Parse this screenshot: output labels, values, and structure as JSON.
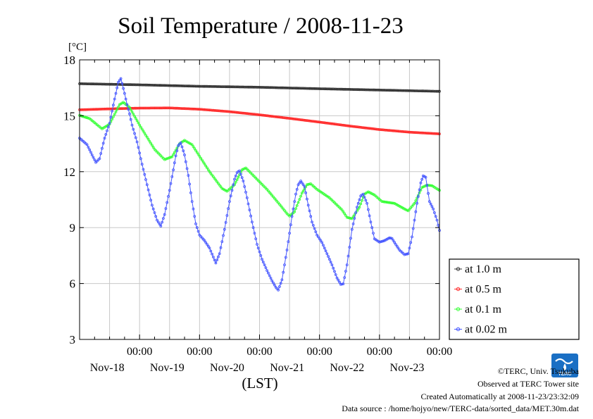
{
  "chart_data": {
    "type": "line",
    "title": "Soil Temperature / 2008-11-23",
    "xlabel": "(LST)",
    "ylabel": "[°C]",
    "ylim": [
      3,
      18
    ],
    "yticks": [
      "3",
      "6",
      "9",
      "12",
      "15",
      "18"
    ],
    "xlim_hours_from_nov17_08": [
      0,
      144
    ],
    "xtick_time_label": "00:00",
    "xtick_day_labels": [
      "Nov-18",
      "Nov-19",
      "Nov-20",
      "Nov-21",
      "Nov-22",
      "Nov-23"
    ],
    "grid": true,
    "legend_position": "bottom-right, outside plot",
    "series": [
      {
        "name": "at 1.0 m",
        "color": "#333333",
        "points": [
          [
            0,
            16.72
          ],
          [
            24,
            16.66
          ],
          [
            48,
            16.58
          ],
          [
            72,
            16.53
          ],
          [
            96,
            16.45
          ],
          [
            120,
            16.38
          ],
          [
            144,
            16.31
          ]
        ]
      },
      {
        "name": "at 0.5 m",
        "color": "#ff2a2a",
        "points": [
          [
            0,
            15.32
          ],
          [
            12,
            15.37
          ],
          [
            24,
            15.41
          ],
          [
            36,
            15.42
          ],
          [
            48,
            15.35
          ],
          [
            60,
            15.22
          ],
          [
            72,
            15.05
          ],
          [
            84,
            14.86
          ],
          [
            96,
            14.66
          ],
          [
            108,
            14.45
          ],
          [
            120,
            14.26
          ],
          [
            132,
            14.12
          ],
          [
            144,
            14.03
          ]
        ]
      },
      {
        "name": "at 0.1 m",
        "color": "#33ff33",
        "points": [
          [
            0,
            15.02
          ],
          [
            4,
            14.85
          ],
          [
            9,
            14.3
          ],
          [
            12,
            14.55
          ],
          [
            16,
            15.6
          ],
          [
            17.5,
            15.72
          ],
          [
            20,
            15.45
          ],
          [
            24,
            14.5
          ],
          [
            30,
            13.2
          ],
          [
            34,
            12.65
          ],
          [
            37,
            12.8
          ],
          [
            40,
            13.5
          ],
          [
            42,
            13.68
          ],
          [
            45,
            13.45
          ],
          [
            52,
            12.0
          ],
          [
            57,
            11.1
          ],
          [
            59,
            10.95
          ],
          [
            62,
            11.3
          ],
          [
            65,
            12.1
          ],
          [
            66.5,
            12.2
          ],
          [
            68,
            12.0
          ],
          [
            75,
            11.05
          ],
          [
            80,
            10.25
          ],
          [
            83,
            9.75
          ],
          [
            84,
            9.62
          ],
          [
            86,
            9.85
          ],
          [
            89,
            10.85
          ],
          [
            91,
            11.3
          ],
          [
            92.5,
            11.35
          ],
          [
            95,
            11.05
          ],
          [
            100,
            10.6
          ],
          [
            105,
            9.95
          ],
          [
            107,
            9.55
          ],
          [
            109,
            9.48
          ],
          [
            112,
            10.1
          ],
          [
            114,
            10.8
          ],
          [
            115.5,
            10.92
          ],
          [
            118,
            10.75
          ],
          [
            121,
            10.4
          ],
          [
            126,
            10.3
          ],
          [
            130,
            10.0
          ],
          [
            131.5,
            9.9
          ],
          [
            134,
            10.3
          ],
          [
            137,
            11.15
          ],
          [
            139,
            11.28
          ],
          [
            141,
            11.25
          ],
          [
            144,
            11.0
          ]
        ]
      },
      {
        "name": "at 0.02 m",
        "color": "#4455ff",
        "points": [
          [
            0,
            13.8
          ],
          [
            3,
            13.45
          ],
          [
            5,
            12.9
          ],
          [
            6.5,
            12.5
          ],
          [
            8,
            12.7
          ],
          [
            10,
            13.8
          ],
          [
            12,
            14.6
          ],
          [
            14,
            15.9
          ],
          [
            15.5,
            16.8
          ],
          [
            16.5,
            17.0
          ],
          [
            18,
            16.2
          ],
          [
            19,
            15.6
          ],
          [
            20,
            15.1
          ],
          [
            21,
            14.5
          ],
          [
            23,
            13.6
          ],
          [
            25,
            12.4
          ],
          [
            27,
            11.3
          ],
          [
            29,
            10.2
          ],
          [
            31,
            9.4
          ],
          [
            32.5,
            9.08
          ],
          [
            34,
            9.7
          ],
          [
            36,
            11.0
          ],
          [
            37.5,
            12.1
          ],
          [
            38.5,
            12.85
          ],
          [
            39.5,
            13.4
          ],
          [
            40.5,
            13.55
          ],
          [
            42,
            12.9
          ],
          [
            43.5,
            11.8
          ],
          [
            45,
            10.4
          ],
          [
            46.5,
            9.2
          ],
          [
            48,
            8.6
          ],
          [
            50,
            8.3
          ],
          [
            52,
            7.9
          ],
          [
            54.5,
            7.1
          ],
          [
            56,
            7.6
          ],
          [
            58,
            8.9
          ],
          [
            60,
            10.4
          ],
          [
            62,
            11.6
          ],
          [
            63,
            11.95
          ],
          [
            64,
            12.05
          ],
          [
            65.5,
            11.5
          ],
          [
            67,
            10.6
          ],
          [
            69,
            9.3
          ],
          [
            71,
            8.1
          ],
          [
            73,
            7.3
          ],
          [
            75,
            6.7
          ],
          [
            77,
            6.15
          ],
          [
            78.5,
            5.8
          ],
          [
            79.5,
            5.65
          ],
          [
            81,
            6.2
          ],
          [
            83,
            7.8
          ],
          [
            85,
            9.6
          ],
          [
            86.5,
            10.8
          ],
          [
            87.5,
            11.3
          ],
          [
            88.5,
            11.5
          ],
          [
            90,
            11.2
          ],
          [
            91.5,
            10.2
          ],
          [
            93,
            9.3
          ],
          [
            95,
            8.6
          ],
          [
            97,
            8.2
          ],
          [
            99,
            7.6
          ],
          [
            101,
            7.0
          ],
          [
            103,
            6.3
          ],
          [
            104.5,
            5.95
          ],
          [
            105.5,
            5.98
          ],
          [
            107,
            7.0
          ],
          [
            109,
            8.9
          ],
          [
            111,
            10.1
          ],
          [
            112.5,
            10.7
          ],
          [
            113.5,
            10.8
          ],
          [
            115,
            10.3
          ],
          [
            116.5,
            9.3
          ],
          [
            118,
            8.4
          ],
          [
            120,
            8.22
          ],
          [
            122,
            8.3
          ],
          [
            124,
            8.45
          ],
          [
            125,
            8.42
          ],
          [
            126.5,
            8.1
          ],
          [
            128,
            7.8
          ],
          [
            130,
            7.55
          ],
          [
            131.5,
            7.6
          ],
          [
            133,
            8.5
          ],
          [
            135,
            10.3
          ],
          [
            136.5,
            11.4
          ],
          [
            137.5,
            11.78
          ],
          [
            138.5,
            11.7
          ],
          [
            140,
            10.4
          ],
          [
            141.5,
            10.0
          ],
          [
            143,
            9.4
          ],
          [
            144,
            8.85
          ]
        ]
      }
    ]
  },
  "credits": {
    "copyright": "©TERC, Univ. Tsukuba",
    "site": "Observed at TERC Tower site",
    "created": "Created Automatically at 2008-11-23/23:32:09",
    "source": "Data source : /home/hojyo/new/TERC-data/sorted_data/MET.30m.dat"
  },
  "logo": {
    "text": "TERC",
    "color": "#1a6fc4"
  }
}
